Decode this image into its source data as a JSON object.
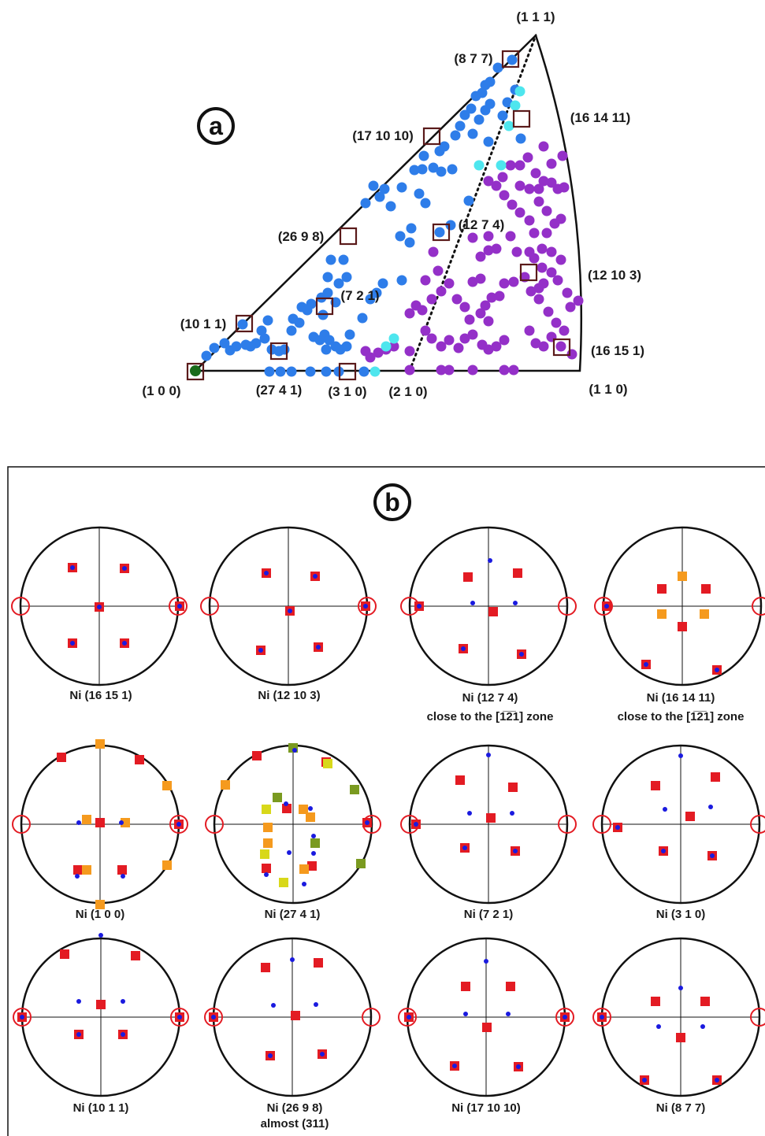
{
  "panel_a": {
    "letter": "a",
    "corners": {
      "c100": "(1 0 0)",
      "c110": "(1 1 0)",
      "c111": "(1 1 1)"
    },
    "labels": {
      "l877": "(8 7 7)",
      "l161411": "(16 14 11)",
      "l171010": "(17 10 10)",
      "l2698": "(26 9 8)",
      "l1274": "(12 7 4)",
      "l12103": "(12 10 3)",
      "l721": "(7 2 1)",
      "l1011": "(10 1 1)",
      "l16151": "(16 15 1)",
      "l2741": "(27 4 1)",
      "l310": "(3 1 0)",
      "l210": "(2 1 0)"
    },
    "colors": {
      "blue": "#2e7de9",
      "purple": "#9430c8",
      "cyan": "#4ee6ee",
      "green": "#1a6b1a",
      "box": "#5a1a1a"
    }
  },
  "panel_b": {
    "letter": "b",
    "colors": {
      "red_square": "#e31b23",
      "blue_dot": "#1a1adf",
      "orange": "#f59a1e",
      "yellow": "#d8d81a",
      "olive": "#7a9a20",
      "ring": "#e31b23"
    },
    "captions": {
      "p16151": "Ni (16 15 1)",
      "p12103": "Ni (12 10 3)",
      "p1274": "Ni (12 7 4)",
      "p1274_sub": "close to the [1̅2̅1] zone",
      "p161411": "Ni (16 14 11)",
      "p161411_sub": "close to the [1̅2̅1] zone",
      "p100": "Ni (1 0 0)",
      "p2741": "Ni (27 4 1)",
      "p721": "Ni (7 2 1)",
      "p310": "Ni (3 1 0)",
      "p1011": "Ni (10 1 1)",
      "p2698": "Ni (26 9 8)",
      "p2698_sub": "almost (311)",
      "p171010": "Ni (17 10 10)",
      "p877": "Ni (8 7 7)"
    }
  }
}
